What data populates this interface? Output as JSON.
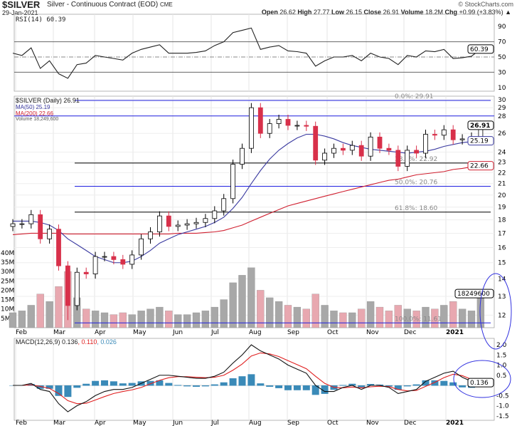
{
  "header": {
    "symbol": "$SILVER",
    "name": "Silver - Continuous Contract (EOD)",
    "exchange": "CME",
    "date": "29-Jan-2021",
    "brand": "© StockCharts.com",
    "open_label": "Open",
    "open": "26.62",
    "high_label": "High",
    "high": "27.77",
    "low_label": "Low",
    "low": "26.15",
    "close_label": "Close",
    "close": "26.91",
    "volume_label": "Volume",
    "volume": "18.2M",
    "chg_label": "Chg",
    "chg": "+0.99 (+3.83%)"
  },
  "legends": {
    "rsi": "RSI(14) 60.39",
    "price": "$SILVER (Daily) 26.91",
    "ma50": "MA(50) 25.19",
    "ma200": "MA(200) 22.66",
    "volume": "Volume 18,249,600",
    "macd_main": "MACD(12,26,9) 0.136",
    "macd_signal": ", 0.110",
    "macd_hist": ", 0.026"
  },
  "colors": {
    "up": "#000000",
    "down": "#d8304a",
    "ma50": "#3a3aa0",
    "ma200": "#d02030",
    "fib_blue": "#2020e0",
    "hist": "#3a8ab8",
    "vol_up": "#a8a8a8",
    "vol_down": "#e8a8b0",
    "annot": "#3030e0"
  },
  "chart_data": {
    "type": "candlestick",
    "title": "$SILVER Silver - Continuous Contract (EOD)",
    "x_tick_labels": [
      "Feb",
      "Mar",
      "Apr",
      "May",
      "Jun",
      "Jul",
      "Aug",
      "Sep",
      "Oct",
      "Nov",
      "Dec",
      "2021"
    ],
    "price_axis_ticks": [
      "30",
      "29",
      "28",
      "26",
      "24",
      "23",
      "22",
      "21",
      "20",
      "19",
      "18",
      "17",
      "16",
      "15",
      "14",
      "13",
      "12"
    ],
    "price_axis_values": [
      30,
      29,
      28,
      26,
      24,
      23,
      22,
      21,
      20,
      19,
      18,
      17,
      16,
      15,
      14,
      13,
      12
    ],
    "volume_axis_ticks": [
      "40M",
      "35M",
      "30M",
      "25M",
      "20M",
      "15M",
      "10M",
      "5M"
    ],
    "volume_axis_values": [
      40,
      35,
      30,
      25,
      20,
      15,
      10,
      5
    ],
    "rsi_axis_ticks": [
      "90",
      "70",
      "50",
      "30",
      "10"
    ],
    "rsi_axis_values": [
      90,
      70,
      50,
      30,
      10
    ],
    "macd_axis_ticks": [
      "2.0",
      "1.5",
      "1.0",
      "0.5",
      "-0.5",
      "-1.0",
      "-1.5"
    ],
    "macd_axis_values": [
      2.0,
      1.5,
      1.0,
      0.5,
      -0.5,
      -1.0,
      -1.5
    ],
    "closes": [
      17.7,
      17.7,
      18.4,
      16.6,
      17.3,
      14.8,
      12.5,
      14.4,
      14.3,
      15.4,
      15.4,
      15.2,
      14.9,
      15.5,
      16.6,
      17.1,
      18.3,
      17.5,
      17.6,
      17.7,
      17.8,
      18.1,
      18.7,
      19.7,
      22.8,
      24.4,
      29.0,
      26.0,
      27.1,
      27.6,
      26.9,
      26.9,
      26.8,
      23.2,
      23.9,
      24.4,
      24.2,
      24.7,
      23.6,
      25.6,
      24.4,
      24.2,
      22.6,
      24.2,
      23.9,
      25.9,
      25.8,
      26.4,
      25.3,
      25.4,
      25.6,
      26.91
    ],
    "volumes_m": [
      8,
      9,
      12,
      18,
      14,
      22,
      30,
      16,
      10,
      9,
      8,
      7,
      8,
      7,
      9,
      10,
      11,
      9,
      7,
      7,
      8,
      9,
      11,
      15,
      24,
      28,
      32,
      20,
      16,
      14,
      12,
      11,
      10,
      18,
      12,
      9,
      8,
      8,
      10,
      14,
      11,
      9,
      12,
      10,
      9,
      11,
      10,
      12,
      14,
      10,
      9,
      18.2
    ],
    "ma50": [
      17.9,
      17.9,
      17.9,
      17.8,
      17.6,
      17.2,
      16.6,
      16.2,
      15.8,
      15.4,
      15.2,
      15.0,
      15.0,
      15.1,
      15.4,
      15.8,
      16.3,
      16.6,
      16.9,
      17.1,
      17.3,
      17.5,
      17.8,
      18.2,
      18.9,
      19.8,
      21.0,
      22.2,
      23.3,
      24.2,
      24.9,
      25.5,
      25.9,
      25.9,
      25.7,
      25.4,
      25.0,
      24.7,
      24.5,
      24.3,
      24.2,
      24.1,
      24.0,
      23.9,
      24.0,
      24.1,
      24.3,
      24.6,
      24.8,
      25.0,
      25.1,
      25.19
    ],
    "ma200": [
      16.9,
      16.95,
      17.0,
      17.0,
      17.0,
      17.0,
      16.95,
      16.95,
      16.95,
      16.95,
      16.95,
      16.95,
      16.95,
      16.95,
      16.95,
      16.95,
      16.95,
      16.95,
      17.0,
      17.0,
      17.0,
      17.05,
      17.1,
      17.2,
      17.4,
      17.6,
      17.9,
      18.2,
      18.5,
      18.8,
      19.1,
      19.3,
      19.5,
      19.7,
      19.9,
      20.1,
      20.3,
      20.5,
      20.7,
      20.9,
      21.1,
      21.3,
      21.4,
      21.6,
      21.8,
      21.9,
      22.0,
      22.1,
      22.3,
      22.4,
      22.55,
      22.66
    ],
    "rsi": [
      55,
      52,
      62,
      35,
      45,
      28,
      22,
      40,
      42,
      52,
      50,
      48,
      46,
      55,
      60,
      63,
      66,
      55,
      55,
      55,
      56,
      58,
      65,
      70,
      82,
      85,
      88,
      60,
      63,
      65,
      58,
      57,
      55,
      38,
      45,
      50,
      50,
      52,
      45,
      55,
      50,
      48,
      40,
      52,
      50,
      58,
      57,
      60,
      48,
      49,
      51,
      60.39
    ],
    "macd": [
      0,
      0,
      0.1,
      -0.2,
      -0.3,
      -0.9,
      -1.3,
      -1.0,
      -0.8,
      -0.5,
      -0.3,
      -0.2,
      -0.2,
      -0.1,
      0.1,
      0.3,
      0.5,
      0.5,
      0.45,
      0.4,
      0.35,
      0.35,
      0.45,
      0.65,
      1.1,
      1.5,
      2.0,
      1.7,
      1.5,
      1.3,
      1.0,
      0.8,
      0.6,
      0.0,
      -0.3,
      -0.3,
      -0.1,
      0,
      -0.2,
      0,
      0,
      -0.1,
      -0.4,
      -0.3,
      -0.2,
      0.2,
      0.4,
      0.6,
      0.7,
      0.4,
      0.2,
      0.136
    ],
    "macd_signal": [
      0,
      0,
      0.03,
      -0.05,
      -0.15,
      -0.4,
      -0.75,
      -0.9,
      -0.88,
      -0.72,
      -0.55,
      -0.4,
      -0.3,
      -0.22,
      -0.1,
      0.08,
      0.25,
      0.38,
      0.43,
      0.43,
      0.4,
      0.38,
      0.4,
      0.5,
      0.75,
      1.05,
      1.45,
      1.6,
      1.55,
      1.42,
      1.22,
      1.02,
      0.82,
      0.45,
      0.1,
      -0.1,
      -0.12,
      -0.08,
      -0.12,
      -0.07,
      -0.04,
      -0.06,
      -0.2,
      -0.27,
      -0.25,
      -0.05,
      0.15,
      0.38,
      0.55,
      0.48,
      0.3,
      0.11
    ],
    "fibonacci": [
      {
        "label": "0.0%: 29.91",
        "value": 29.91,
        "color": "blue"
      },
      {
        "label": "38.2%: 22.92",
        "value": 22.92,
        "color": "black"
      },
      {
        "label": "50.0%: 20.76",
        "value": 20.76,
        "color": "blue"
      },
      {
        "label": "61.8%: 18.60",
        "value": 18.6,
        "color": "black"
      },
      {
        "label": "100.0%: 11.61",
        "value": 11.61,
        "color": "blue"
      }
    ],
    "resistance_line": 28,
    "rsi_lines": [
      70,
      30
    ],
    "last_labels": {
      "close": "26.91",
      "ma50": "25.19",
      "ma200": "22.66",
      "volume": "18249600",
      "rsi": "60.39",
      "macd": "0.136"
    }
  }
}
